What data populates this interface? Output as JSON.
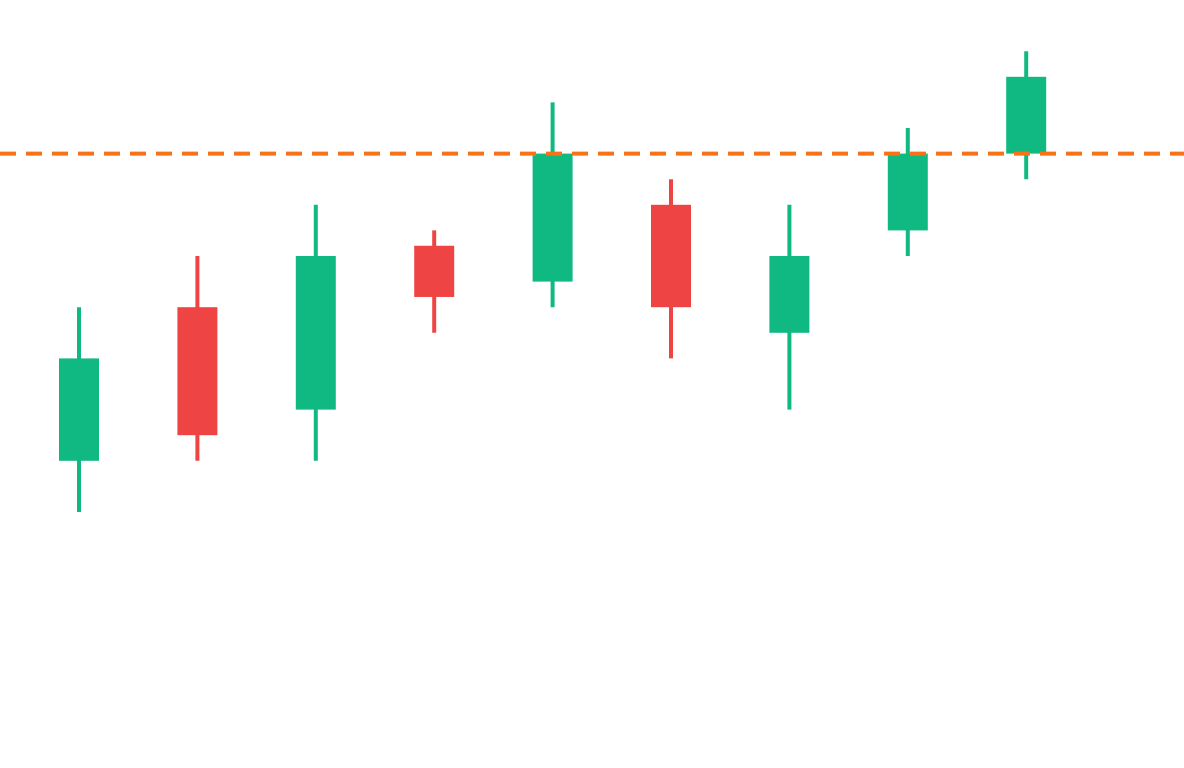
{
  "chart_data": {
    "type": "candlestick",
    "title": "",
    "xlabel": "",
    "ylabel": "",
    "ylim": [
      0,
      30
    ],
    "grid": false,
    "axes_visible": false,
    "colors": {
      "up": "#10b981",
      "down": "#ef4444",
      "reference_line": "#f97316"
    },
    "candles": [
      {
        "open": 12,
        "high": 18,
        "low": 10,
        "close": 16
      },
      {
        "open": 18,
        "high": 20,
        "low": 12,
        "close": 13
      },
      {
        "open": 14,
        "high": 22,
        "low": 12,
        "close": 20
      },
      {
        "open": 20.4,
        "high": 21,
        "low": 17,
        "close": 18.4
      },
      {
        "open": 19,
        "high": 26,
        "low": 18,
        "close": 24
      },
      {
        "open": 22,
        "high": 23,
        "low": 16,
        "close": 18
      },
      {
        "open": 17,
        "high": 22,
        "low": 14,
        "close": 20
      },
      {
        "open": 21,
        "high": 25,
        "low": 20,
        "close": 24
      },
      {
        "open": 24,
        "high": 28,
        "low": 23,
        "close": 27
      }
    ],
    "reference_line": {
      "value": 24,
      "style": "dashed"
    }
  }
}
